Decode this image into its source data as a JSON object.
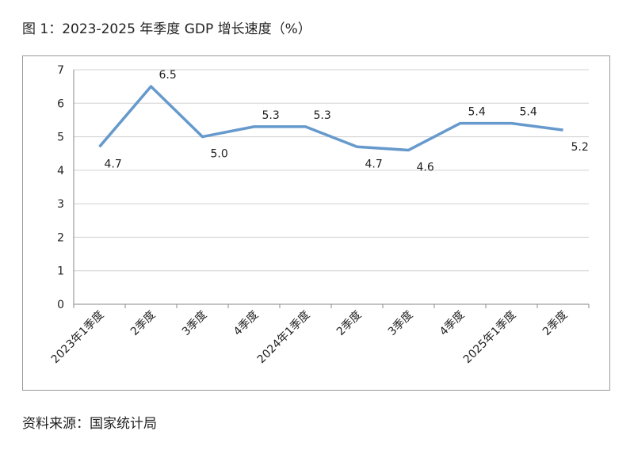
{
  "title": "图 1：2023-2025 年季度 GDP 增长速度（%）",
  "source": "资料来源：国家统计局",
  "chart_data": {
    "type": "line",
    "categories": [
      "2023年1季度",
      "2季度",
      "3季度",
      "4季度",
      "2024年1季度",
      "2季度",
      "3季度",
      "4季度",
      "2025年1季度",
      "2季度"
    ],
    "series": [
      {
        "values": [
          4.7,
          6.5,
          5.0,
          5.3,
          5.3,
          4.7,
          4.6,
          5.4,
          5.4,
          5.2
        ],
        "color": "#6699cc"
      }
    ],
    "data_labels": [
      "4.7",
      "6.5",
      "5.0",
      "5.3",
      "5.3",
      "4.7",
      "4.6",
      "5.4",
      "5.4",
      "5.2"
    ],
    "ylim": [
      0,
      7
    ],
    "yticks": [
      0,
      1,
      2,
      3,
      4,
      5,
      6,
      7
    ],
    "grid": true,
    "legend": "none",
    "xlabel": "",
    "ylabel": ""
  }
}
